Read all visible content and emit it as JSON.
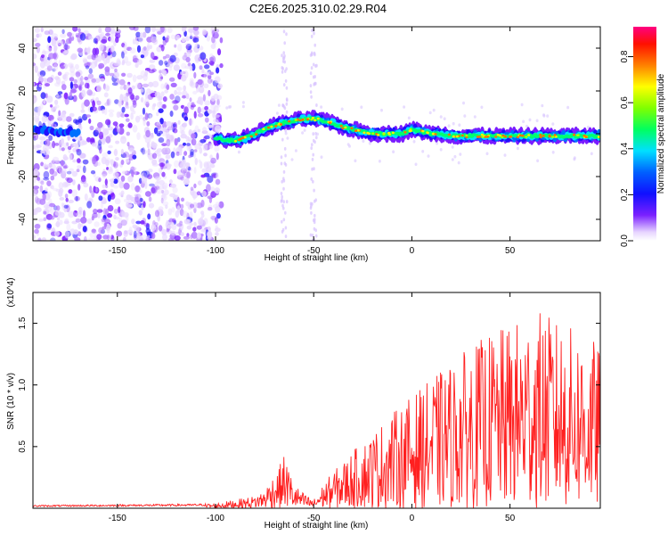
{
  "title": "C2E6.2025.310.02.29.R04",
  "chart_data": [
    {
      "type": "heatmap",
      "title": "C2E6.2025.310.02.29.R04",
      "xlabel": "Height of straight line (km)",
      "ylabel": "Frequency (Hz)",
      "xlim": [
        -193,
        96
      ],
      "ylim": [
        -50,
        50
      ],
      "x_ticks": [
        "-150",
        "-100",
        "-50",
        "0",
        "50"
      ],
      "y_ticks": [
        "-40",
        "-20",
        "0",
        "20",
        "40"
      ],
      "colorbar": {
        "label": "Normalized spectral amplitude",
        "range": [
          0.0,
          0.93
        ],
        "ticks": [
          "0.0",
          "0.2",
          "0.4",
          "0.6",
          "0.8"
        ]
      },
      "ridge": {
        "height_km": [
          -193,
          -180,
          -170,
          -160,
          -150,
          -140,
          -130,
          -120,
          -110,
          -100,
          -95,
          -90,
          -85,
          -80,
          -75,
          -70,
          -65,
          -60,
          -55,
          -50,
          -45,
          -40,
          -35,
          -30,
          -25,
          -20,
          -15,
          -10,
          -5,
          0,
          5,
          10,
          15,
          20,
          30,
          40,
          50,
          60,
          70,
          80,
          90,
          96
        ],
        "frequency_hz": [
          2,
          1,
          1,
          0,
          0,
          0,
          0,
          0,
          0,
          -2,
          -3,
          -3,
          -2,
          0,
          2,
          4,
          5,
          6,
          7,
          7,
          6,
          5,
          3,
          2,
          1,
          0,
          0,
          0,
          0,
          2,
          1,
          0,
          0,
          -1,
          -1,
          -1,
          -1,
          -1,
          -1,
          -1,
          -1,
          -1
        ]
      }
    },
    {
      "type": "line",
      "xlabel": "Height of straight line (km)",
      "ylabel": "SNR (10 * v/v)",
      "y_exponent_label": "(x10^4)",
      "xlim": [
        -193,
        96
      ],
      "ylim": [
        0,
        17500
      ],
      "x_ticks": [
        "-150",
        "-100",
        "-50",
        "0",
        "50"
      ],
      "y_ticks": [
        "0.5",
        "1.0",
        "1.5"
      ],
      "series": [
        {
          "name": "SNR",
          "color": "#ff2020",
          "envelope_x": [
            -193,
            -150,
            -110,
            -100,
            -90,
            -80,
            -75,
            -72,
            -68,
            -65,
            -60,
            -55,
            -50,
            -45,
            -40,
            -35,
            -30,
            -25,
            -20,
            -15,
            -10,
            -5,
            0,
            5,
            10,
            15,
            20,
            25,
            30,
            35,
            40,
            45,
            50,
            55,
            60,
            65,
            70,
            75,
            80,
            85,
            90,
            93,
            96
          ],
          "envelope_y": [
            250,
            300,
            350,
            400,
            700,
            1000,
            1500,
            2400,
            3200,
            4400,
            2000,
            1200,
            700,
            2000,
            3000,
            3800,
            4700,
            5400,
            6200,
            7000,
            7800,
            8400,
            9200,
            9800,
            10500,
            11200,
            11800,
            12500,
            13200,
            13700,
            14200,
            14500,
            14900,
            15300,
            15800,
            16000,
            15600,
            15200,
            14800,
            14400,
            14000,
            13600,
            13000
          ]
        }
      ]
    }
  ]
}
